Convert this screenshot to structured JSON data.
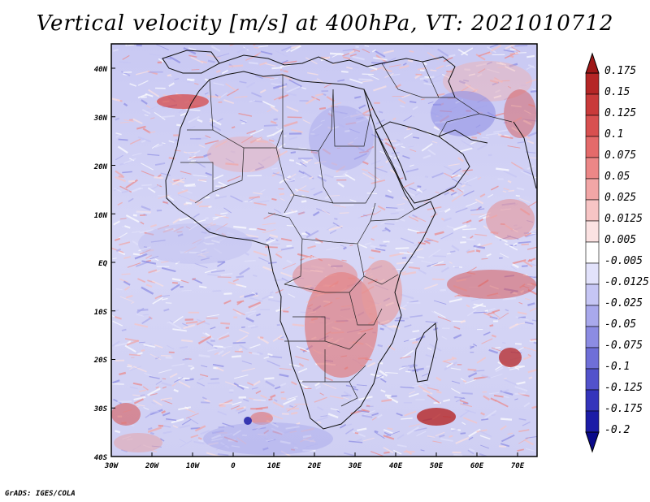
{
  "title": "Vertical velocity [m/s] at 400hPa, VT: 2021010712",
  "credit": "GrADS: IGES/COLA",
  "lat_labels": [
    "40N",
    "30N",
    "20N",
    "10N",
    "EQ",
    "10S",
    "20S",
    "30S",
    "40S"
  ],
  "lon_labels": [
    "30W",
    "20W",
    "10W",
    "0",
    "10E",
    "20E",
    "30E",
    "40E",
    "50E",
    "60E",
    "70E"
  ],
  "colorbar": {
    "labels": [
      "0.175",
      "0.15",
      "0.125",
      "0.1",
      "0.075",
      "0.05",
      "0.025",
      "0.0125",
      "0.005",
      "-0.005",
      "-0.0125",
      "-0.025",
      "-0.05",
      "-0.075",
      "-0.1",
      "-0.125",
      "-0.175",
      "-0.2"
    ],
    "colors": [
      "#9e1717",
      "#b52626",
      "#c93a3a",
      "#d85050",
      "#e46a6a",
      "#ec8787",
      "#f2a6a6",
      "#f7c5c5",
      "#fbe2e2",
      "#ffffff",
      "#e2e2fb",
      "#c6c6f4",
      "#a9a9ec",
      "#8c8ce3",
      "#6f6fd8",
      "#5252cb",
      "#3434bb",
      "#1c1ca6",
      "#0a0a8a"
    ]
  },
  "chart_data": {
    "type": "heatmap",
    "title": "Vertical velocity [m/s] at 400hPa, VT: 2021010712",
    "variable": "Vertical velocity",
    "units": "m/s",
    "level": "400hPa",
    "valid_time": "2021010712",
    "lon_range": [
      -30,
      75
    ],
    "lat_range": [
      -40,
      45
    ],
    "x_ticks": [
      "30W",
      "20W",
      "10W",
      "0",
      "10E",
      "20E",
      "30E",
      "40E",
      "50E",
      "60E",
      "70E"
    ],
    "y_ticks": [
      "40N",
      "30N",
      "20N",
      "10N",
      "EQ",
      "10S",
      "20S",
      "30S",
      "40S"
    ],
    "color_levels": [
      -0.2,
      -0.175,
      -0.125,
      -0.1,
      -0.075,
      -0.05,
      -0.025,
      -0.0125,
      -0.005,
      0.005,
      0.0125,
      0.025,
      0.05,
      0.075,
      0.1,
      0.125,
      0.15,
      0.175
    ]
  }
}
